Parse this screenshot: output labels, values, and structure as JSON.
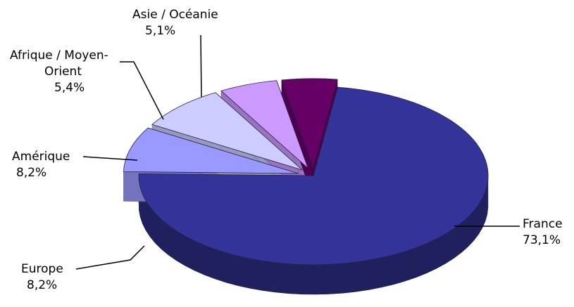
{
  "chart_data": {
    "type": "pie",
    "style": "3d-exploded",
    "title": "",
    "slices": [
      {
        "key": "france",
        "label": "France",
        "value": 73.1,
        "value_label": "73,1%",
        "color": "#333399",
        "explode": false
      },
      {
        "key": "europe",
        "label": "Europe",
        "value": 8.2,
        "value_label": "8,2%",
        "color": "#9999ff",
        "explode": true
      },
      {
        "key": "amerique",
        "label": "Amérique",
        "value": 8.2,
        "value_label": "8,2%",
        "color": "#ccccff",
        "explode": true
      },
      {
        "key": "afrique",
        "label_lines": [
          "Afrique / Moyen-",
          "Orient"
        ],
        "value": 5.4,
        "value_label": "5,4%",
        "color": "#cc99ff",
        "explode": true
      },
      {
        "key": "asie",
        "label": "Asie / Océanie",
        "value": 5.1,
        "value_label": "5,1%",
        "color": "#660066",
        "explode": true
      }
    ]
  }
}
